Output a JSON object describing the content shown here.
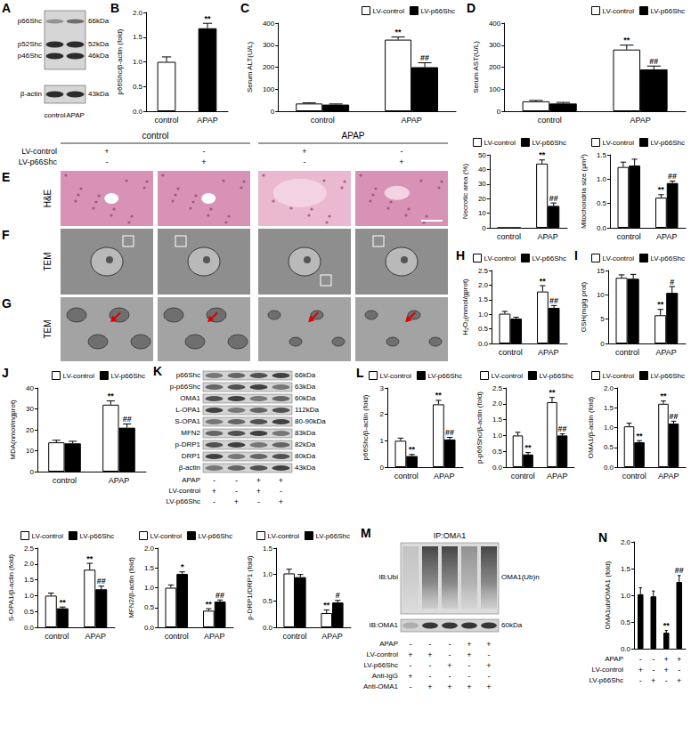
{
  "blot_A": {
    "letter": "A",
    "bands": [
      {
        "label": "p66Shc",
        "kda": "66kDa"
      },
      {
        "label": "p52Shc",
        "kda": "52kDa"
      },
      {
        "label": "p46Shc",
        "kda": "46kDa"
      },
      {
        "label": "β-actin",
        "kda": "43kDa"
      }
    ],
    "lanes": [
      "control",
      "APAP"
    ]
  },
  "micrographs": {
    "letters": [
      "E",
      "F",
      "G"
    ],
    "row_labels": [
      "H&E",
      "TEM",
      "TEM"
    ],
    "groups": [
      "control",
      "APAP"
    ],
    "conditions": [
      {
        "label": "LV-control",
        "marks": [
          "+",
          "-",
          "+",
          "-"
        ]
      },
      {
        "label": "LV-p66Shc",
        "marks": [
          "-",
          "+",
          "-",
          "+"
        ]
      }
    ]
  },
  "blot_K": {
    "letter": "K",
    "bands": [
      {
        "label": "p66Shc",
        "kda": "66kDa"
      },
      {
        "label": "p-p66Shc",
        "kda": "63kDa"
      },
      {
        "label": "OMA1",
        "kda": "60kDa"
      },
      {
        "label": "L-OPA1",
        "kda": "112kDa"
      },
      {
        "label": "S-OPA1",
        "kda": "80-90kDa"
      },
      {
        "label": "MFN2",
        "kda": "83kDa"
      },
      {
        "label": "p-DRP1",
        "kda": "82kDa"
      },
      {
        "label": "DRP1",
        "kda": "80kDa"
      },
      {
        "label": "β-actin",
        "kda": "43kDa"
      }
    ],
    "conditions": [
      {
        "label": "APAP",
        "marks": [
          "-",
          "-",
          "+",
          "+"
        ]
      },
      {
        "label": "LV-control",
        "marks": [
          "+",
          "-",
          "+",
          "-"
        ]
      },
      {
        "label": "LV-p66Shc",
        "marks": [
          "-",
          "+",
          "-",
          "+"
        ]
      }
    ]
  },
  "blot_M": {
    "letter": "M",
    "title": "IP:OMA1",
    "rows": [
      {
        "label": "IB:Ubi",
        "right": "OMA1(Ub)n"
      },
      {
        "label": "IB:OMA1",
        "right": "60kDa"
      }
    ],
    "conditions": [
      {
        "label": "APAP",
        "marks": [
          "-",
          "-",
          "-",
          "+",
          "+"
        ]
      },
      {
        "label": "LV-control",
        "marks": [
          "+",
          "+",
          "-",
          "+",
          "-"
        ]
      },
      {
        "label": "LV-p66Shc",
        "marks": [
          "-",
          "-",
          "+",
          "-",
          "+"
        ]
      },
      {
        "label": "Anti-IgG",
        "marks": [
          "+",
          "-",
          "-",
          "-",
          "-"
        ]
      },
      {
        "label": "Anti-OMA1",
        "marks": [
          "-",
          "+",
          "+",
          "+",
          "+"
        ]
      }
    ]
  },
  "chart_data": [
    {
      "type": "bar",
      "panel": "B",
      "y_label": "p66Shc/β-actin (fold)",
      "categories": [
        "control",
        "APAP"
      ],
      "values": [
        1.0,
        1.68
      ],
      "errors": [
        0.1,
        0.1
      ],
      "annotations": [
        null,
        "**"
      ],
      "colors": [
        "#ffffff",
        "#000000"
      ],
      "ylim": [
        0,
        2
      ],
      "yticks": [
        {
          "value": 0,
          "label": "0.0"
        },
        0.5,
        {
          "value": 1,
          "label": "1.0"
        },
        1.5,
        {
          "value": 2,
          "label": "2.0"
        }
      ],
      "grid": false
    },
    {
      "type": "bar",
      "panel": "C",
      "y_label": "Serum ALT(U/L)",
      "categories": [
        "control",
        "APAP"
      ],
      "series": [
        {
          "name": "LV-control",
          "color": "#ffffff",
          "values": [
            35,
            325
          ],
          "errors": [
            3,
            12
          ],
          "annotations": [
            null,
            "**"
          ]
        },
        {
          "name": "LV-p66Shc",
          "color": "#000000",
          "values": [
            30,
            200
          ],
          "errors": [
            3,
            20
          ],
          "annotations": [
            null,
            "##"
          ]
        }
      ],
      "ylim": [
        0,
        400
      ],
      "yticks": [
        0,
        100,
        200,
        300,
        400
      ],
      "grid": false,
      "legend": "top"
    },
    {
      "type": "bar",
      "panel": "D",
      "y_label": "Serum AST(U/L)",
      "categories": [
        "control",
        "APAP"
      ],
      "series": [
        {
          "name": "LV-control",
          "color": "#ffffff",
          "values": [
            45,
            280
          ],
          "errors": [
            4,
            20
          ],
          "annotations": [
            null,
            "**"
          ]
        },
        {
          "name": "LV-p66Shc",
          "color": "#000000",
          "values": [
            35,
            190
          ],
          "errors": [
            5,
            15
          ],
          "annotations": [
            null,
            "##"
          ]
        }
      ],
      "ylim": [
        0,
        400
      ],
      "yticks": [
        0,
        100,
        200,
        300,
        400
      ],
      "grid": false,
      "legend": "top"
    },
    {
      "type": "bar",
      "y_label": "Necrotic area (%)",
      "categories": [
        "control",
        "APAP"
      ],
      "series": [
        {
          "name": "LV-control",
          "color": "#ffffff",
          "values": [
            0,
            44
          ],
          "errors": [
            0,
            2.5
          ],
          "annotations": [
            null,
            "**"
          ]
        },
        {
          "name": "LV-p66Shc",
          "color": "#000000",
          "values": [
            0,
            15
          ],
          "errors": [
            0,
            2
          ],
          "annotations": [
            null,
            "##"
          ]
        }
      ],
      "ylim": [
        0,
        50
      ],
      "yticks": [
        0,
        10,
        20,
        30,
        40,
        50
      ],
      "grid": false,
      "legend": "top"
    },
    {
      "type": "bar",
      "y_label": "Mitochondria size (μm²)",
      "categories": [
        "control",
        "APAP"
      ],
      "series": [
        {
          "name": "LV-control",
          "color": "#ffffff",
          "values": [
            1.25,
            0.62
          ],
          "errors": [
            0.1,
            0.06
          ],
          "annotations": [
            null,
            "**"
          ]
        },
        {
          "name": "LV-p66Shc",
          "color": "#000000",
          "values": [
            1.28,
            0.92
          ],
          "errors": [
            0.13,
            0.04
          ],
          "annotations": [
            null,
            "##"
          ]
        }
      ],
      "ylim": [
        0,
        1.5
      ],
      "yticks": [
        {
          "value": 0,
          "label": "0.0"
        },
        0.5,
        {
          "value": 1,
          "label": "1.0"
        },
        1.5
      ],
      "grid": false,
      "legend": "top"
    },
    {
      "type": "bar",
      "panel": "H",
      "y_label": "H₂O₂(mmol/gprot)",
      "categories": [
        "control",
        "APAP"
      ],
      "series": [
        {
          "name": "LV-control",
          "color": "#ffffff",
          "values": [
            1.02,
            1.78
          ],
          "errors": [
            0.08,
            0.2
          ],
          "annotations": [
            null,
            "**"
          ]
        },
        {
          "name": "LV-p66Shc",
          "color": "#000000",
          "values": [
            0.85,
            1.22
          ],
          "errors": [
            0.05,
            0.08
          ],
          "annotations": [
            null,
            "##"
          ]
        }
      ],
      "ylim": [
        0,
        2.5
      ],
      "yticks": [
        {
          "value": 0,
          "label": "0.0"
        },
        0.5,
        {
          "value": 1,
          "label": "1.0"
        },
        1.5,
        {
          "value": 2,
          "label": "2.0"
        },
        2.5
      ],
      "grid": false,
      "legend": "top"
    },
    {
      "type": "bar",
      "panel": "I",
      "y_label": "GSH(mg/g prot)",
      "categories": [
        "control",
        "APAP"
      ],
      "series": [
        {
          "name": "LV-control",
          "color": "#ffffff",
          "values": [
            13.5,
            5.8
          ],
          "errors": [
            0.6,
            1.2
          ],
          "annotations": [
            null,
            "**"
          ]
        },
        {
          "name": "LV-p66Shc",
          "color": "#000000",
          "values": [
            13.3,
            10.4
          ],
          "errors": [
            0.9,
            1.3
          ],
          "annotations": [
            null,
            "#"
          ]
        }
      ],
      "ylim": [
        0,
        15
      ],
      "yticks": [
        0,
        5,
        10,
        15
      ],
      "grid": false,
      "legend": "top"
    },
    {
      "type": "bar",
      "panel": "J",
      "y_label": "MDA(nmol/mgprot)",
      "categories": [
        "control",
        "APAP"
      ],
      "series": [
        {
          "name": "LV-control",
          "color": "#ffffff",
          "values": [
            14,
            32
          ],
          "errors": [
            1,
            1.8
          ],
          "annotations": [
            null,
            "**"
          ]
        },
        {
          "name": "LV-p66Shc",
          "color": "#000000",
          "values": [
            13.5,
            21
          ],
          "errors": [
            1,
            1.8
          ],
          "annotations": [
            null,
            "##"
          ]
        }
      ],
      "ylim": [
        0,
        40
      ],
      "yticks": [
        0,
        10,
        20,
        30,
        40
      ],
      "grid": false,
      "legend": "top"
    },
    {
      "type": "bar",
      "panel": "L",
      "y_label": "p66Shc/β-actin (fold)",
      "categories": [
        "control",
        "APAP"
      ],
      "series": [
        {
          "name": "LV-control",
          "color": "#ffffff",
          "values": [
            1.0,
            2.38
          ],
          "errors": [
            0.1,
            0.15
          ],
          "annotations": [
            null,
            "**"
          ]
        },
        {
          "name": "LV-p66Shc",
          "color": "#000000",
          "values": [
            0.42,
            1.05
          ],
          "errors": [
            0.06,
            0.08
          ],
          "annotations": [
            "**",
            "##"
          ]
        }
      ],
      "ylim": [
        0,
        3
      ],
      "yticks": [
        0,
        1,
        2,
        3
      ],
      "grid": false,
      "legend": "top"
    },
    {
      "type": "bar",
      "y_label": "p-p66Shc/β-actin (fold)",
      "categories": [
        "control",
        "APAP"
      ],
      "series": [
        {
          "name": "LV-control",
          "color": "#ffffff",
          "values": [
            1.0,
            2.05
          ],
          "errors": [
            0.1,
            0.15
          ],
          "annotations": [
            null,
            "**"
          ]
        },
        {
          "name": "LV-p66Shc",
          "color": "#000000",
          "values": [
            0.4,
            1.0
          ],
          "errors": [
            0.06,
            0.05
          ],
          "annotations": [
            "**",
            "##"
          ]
        }
      ],
      "ylim": [
        0,
        2.5
      ],
      "yticks": [
        {
          "value": 0,
          "label": "0.0"
        },
        0.5,
        {
          "value": 1,
          "label": "1.0"
        },
        1.5,
        {
          "value": 2,
          "label": "2.0"
        },
        2.5
      ],
      "grid": false,
      "legend": "top"
    },
    {
      "type": "bar",
      "y_label": "OMA1/β-actin (fold)",
      "categories": [
        "control",
        "APAP"
      ],
      "series": [
        {
          "name": "LV-control",
          "color": "#ffffff",
          "values": [
            1.03,
            1.6
          ],
          "errors": [
            0.08,
            0.07
          ],
          "annotations": [
            null,
            "**"
          ]
        },
        {
          "name": "LV-p66Shc",
          "color": "#000000",
          "values": [
            0.63,
            1.1
          ],
          "errors": [
            0.04,
            0.06
          ],
          "annotations": [
            "**",
            "##"
          ]
        }
      ],
      "ylim": [
        0,
        2
      ],
      "yticks": [
        {
          "value": 0,
          "label": "0.0"
        },
        0.5,
        {
          "value": 1,
          "label": "1.0"
        },
        1.5,
        {
          "value": 2,
          "label": "2.0"
        }
      ],
      "grid": false,
      "legend": "top"
    },
    {
      "type": "bar",
      "y_label": "S-OPA1/β-actin (fold)",
      "categories": [
        "control",
        "APAP"
      ],
      "series": [
        {
          "name": "LV-control",
          "color": "#ffffff",
          "values": [
            1.0,
            1.82
          ],
          "errors": [
            0.08,
            0.2
          ],
          "annotations": [
            null,
            "**"
          ]
        },
        {
          "name": "LV-p66Shc",
          "color": "#000000",
          "values": [
            0.6,
            1.2
          ],
          "errors": [
            0.04,
            0.1
          ],
          "annotations": [
            "**",
            "##"
          ]
        }
      ],
      "ylim": [
        0,
        2.5
      ],
      "yticks": [
        {
          "value": 0,
          "label": "0.0"
        },
        0.5,
        {
          "value": 1,
          "label": "1.0"
        },
        1.5,
        {
          "value": 2,
          "label": "2.0"
        },
        2.5
      ],
      "grid": false,
      "legend": "top"
    },
    {
      "type": "bar",
      "y_label": "MFN2/β-actin (fold)",
      "categories": [
        "control",
        "APAP"
      ],
      "series": [
        {
          "name": "LV-control",
          "color": "#ffffff",
          "values": [
            1.0,
            0.42
          ],
          "errors": [
            0.07,
            0.05
          ],
          "annotations": [
            null,
            "**"
          ]
        },
        {
          "name": "LV-p66Shc",
          "color": "#000000",
          "values": [
            1.35,
            0.65
          ],
          "errors": [
            0.05,
            0.04
          ],
          "annotations": [
            "*",
            "##"
          ]
        }
      ],
      "ylim": [
        0,
        2
      ],
      "yticks": [
        {
          "value": 0,
          "label": "0.0"
        },
        0.5,
        {
          "value": 1,
          "label": "1.0"
        },
        1.5,
        {
          "value": 2,
          "label": "2.0"
        }
      ],
      "grid": false,
      "legend": "top"
    },
    {
      "type": "bar",
      "y_label": "p-DRP1/DRP1 (fold)",
      "categories": [
        "control",
        "APAP"
      ],
      "series": [
        {
          "name": "LV-control",
          "color": "#ffffff",
          "values": [
            1.02,
            0.27
          ],
          "errors": [
            0.08,
            0.06
          ],
          "annotations": [
            null,
            "**"
          ]
        },
        {
          "name": "LV-p66Shc",
          "color": "#000000",
          "values": [
            0.95,
            0.47
          ],
          "errors": [
            0.05,
            0.04
          ],
          "annotations": [
            null,
            "#"
          ]
        }
      ],
      "ylim": [
        0,
        1.5
      ],
      "yticks": [
        {
          "value": 0,
          "label": "0.0"
        },
        0.5,
        {
          "value": 1,
          "label": "1.0"
        },
        1.5
      ],
      "grid": false,
      "legend": "top"
    },
    {
      "type": "bar",
      "panel": "N",
      "y_label": "OMA1ub/OMA1 (fold)",
      "categories": [
        null,
        null,
        null,
        null
      ],
      "values": [
        1.02,
        0.98,
        0.3,
        1.25
      ],
      "errors": [
        0.12,
        0.1,
        0.04,
        0.12
      ],
      "annotations": [
        null,
        null,
        "**",
        "##"
      ],
      "color": "#000000",
      "ylim": [
        0,
        2
      ],
      "yticks": [
        {
          "value": 0,
          "label": "0.0"
        },
        0.5,
        {
          "value": 1,
          "label": "1.0"
        },
        1.5,
        {
          "value": 2,
          "label": "2.0"
        }
      ],
      "grid": false,
      "conditions": [
        {
          "label": "APAP",
          "marks": [
            "-",
            "-",
            "+",
            "+"
          ]
        },
        {
          "label": "LV-control",
          "marks": [
            "+",
            "-",
            "+",
            "-"
          ]
        },
        {
          "label": "LV-p66Shc",
          "marks": [
            "-",
            "+",
            "-",
            "+"
          ]
        }
      ]
    }
  ]
}
